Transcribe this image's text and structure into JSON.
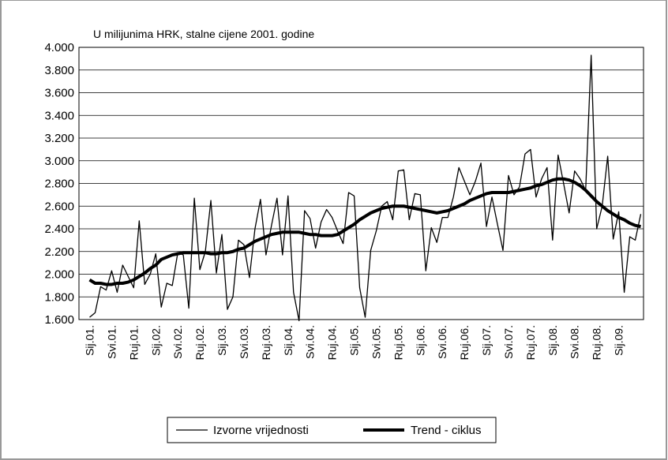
{
  "chart_data": {
    "type": "line",
    "subtitle": "U milijunima HRK, stalne cijene 2001. godine",
    "categories": [
      "Sij.01.",
      null,
      null,
      null,
      "Svi.01.",
      null,
      null,
      null,
      "Ruj.01.",
      null,
      null,
      null,
      "Sij.02.",
      null,
      null,
      null,
      "Svi.02.",
      null,
      null,
      null,
      "Ruj.02.",
      null,
      null,
      null,
      "Sij.03.",
      null,
      null,
      null,
      "Svi.03.",
      null,
      null,
      null,
      "Ruj.03.",
      null,
      null,
      null,
      "Sij.04.",
      null,
      null,
      null,
      "Svi.04.",
      null,
      null,
      null,
      "Ruj.04.",
      null,
      null,
      null,
      "Sij.05.",
      null,
      null,
      null,
      "Svi.05.",
      null,
      null,
      null,
      "Ruj.05.",
      null,
      null,
      null,
      "Sij.06.",
      null,
      null,
      null,
      "Svi.06.",
      null,
      null,
      null,
      "Ruj.06.",
      null,
      null,
      null,
      "Sij.07.",
      null,
      null,
      null,
      "Svi.07.",
      null,
      null,
      null,
      "Ruj.07.",
      null,
      null,
      null,
      "Sij.08.",
      null,
      null,
      null,
      "Svi.08.",
      null,
      null,
      null,
      "Ruj.08.",
      null,
      null,
      null,
      "Sij.09.",
      null,
      null,
      null,
      null
    ],
    "series": [
      {
        "name": "Izvorne vrijednosti",
        "color": "#000000",
        "width": 1.3,
        "values": [
          1620,
          1660,
          1890,
          1860,
          2030,
          1840,
          2080,
          1980,
          1880,
          2470,
          1910,
          2000,
          2180,
          1710,
          1920,
          1900,
          2190,
          2170,
          1700,
          2670,
          2040,
          2200,
          2650,
          2010,
          2350,
          1690,
          1800,
          2300,
          2260,
          1970,
          2400,
          2660,
          2170,
          2430,
          2670,
          2170,
          2690,
          1840,
          1590,
          2560,
          2490,
          2230,
          2460,
          2570,
          2500,
          2380,
          2270,
          2720,
          2690,
          1880,
          1620,
          2210,
          2380,
          2600,
          2640,
          2480,
          2910,
          2920,
          2480,
          2710,
          2700,
          2030,
          2410,
          2280,
          2500,
          2500,
          2680,
          2940,
          2820,
          2700,
          2820,
          2980,
          2420,
          2680,
          2440,
          2210,
          2870,
          2700,
          2770,
          3060,
          3100,
          2680,
          2840,
          2940,
          2300,
          3050,
          2800,
          2540,
          2910,
          2840,
          2740,
          3930,
          2400,
          2600,
          3040,
          2310,
          2550,
          1840,
          2330,
          2300,
          2530
        ]
      },
      {
        "name": "Trend - ciklus",
        "color": "#000000",
        "width": 4,
        "values": [
          1950,
          1920,
          1920,
          1910,
          1910,
          1920,
          1920,
          1930,
          1950,
          1980,
          2010,
          2050,
          2080,
          2130,
          2150,
          2170,
          2180,
          2190,
          2190,
          2190,
          2190,
          2190,
          2180,
          2180,
          2190,
          2190,
          2200,
          2220,
          2230,
          2260,
          2290,
          2310,
          2330,
          2350,
          2360,
          2370,
          2370,
          2370,
          2370,
          2360,
          2350,
          2350,
          2340,
          2340,
          2340,
          2350,
          2380,
          2410,
          2440,
          2480,
          2510,
          2540,
          2560,
          2580,
          2590,
          2600,
          2600,
          2600,
          2590,
          2580,
          2570,
          2560,
          2550,
          2540,
          2550,
          2560,
          2580,
          2600,
          2620,
          2650,
          2670,
          2690,
          2710,
          2720,
          2720,
          2720,
          2720,
          2730,
          2740,
          2750,
          2760,
          2780,
          2790,
          2810,
          2830,
          2840,
          2840,
          2830,
          2810,
          2780,
          2740,
          2690,
          2640,
          2600,
          2560,
          2530,
          2500,
          2480,
          2450,
          2430,
          2420
        ]
      }
    ],
    "ylim": [
      1600,
      4000
    ],
    "yticks": [
      {
        "value": 1600,
        "label": "1.600"
      },
      {
        "value": 1800,
        "label": "1.800"
      },
      {
        "value": 2000,
        "label": "2.000"
      },
      {
        "value": 2200,
        "label": "2.200"
      },
      {
        "value": 2400,
        "label": "2.400"
      },
      {
        "value": 2600,
        "label": "2.600"
      },
      {
        "value": 2800,
        "label": "2.800"
      },
      {
        "value": 3000,
        "label": "3.000"
      },
      {
        "value": 3200,
        "label": "3.200"
      },
      {
        "value": 3400,
        "label": "3.400"
      },
      {
        "value": 3600,
        "label": "3.600"
      },
      {
        "value": 3800,
        "label": "3.800"
      },
      {
        "value": 4000,
        "label": "4.000"
      }
    ],
    "grid": true
  }
}
